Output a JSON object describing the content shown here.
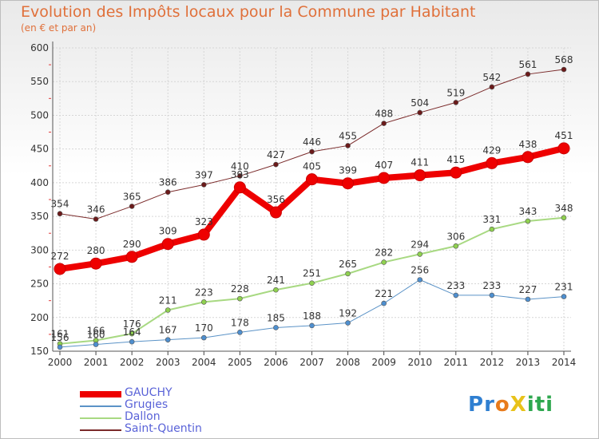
{
  "title": "Evolution des Impôts locaux pour la Commune par Habitant",
  "subtitle": "(en € et par an)",
  "logo": {
    "text": "ProXiti",
    "letters": [
      "P",
      "r",
      "o",
      "X",
      "i",
      "t",
      "i"
    ],
    "colors": [
      "#2f7fd1",
      "#2f7fd1",
      "#e87b1c",
      "#e8c21a",
      "#2fa84f",
      "#2fa84f",
      "#2fa84f"
    ]
  },
  "chart_data": {
    "type": "line",
    "title": "Evolution des Impôts locaux pour la Commune par Habitant",
    "subtitle": "(en € et par an)",
    "xlabel": "",
    "ylabel": "",
    "x": [
      "2000",
      "2001",
      "2002",
      "2003",
      "2004",
      "2005",
      "2006",
      "2007",
      "2008",
      "2009",
      "2010",
      "2011",
      "2012",
      "2013",
      "2014"
    ],
    "ylim": [
      150,
      600
    ],
    "yticks": [
      "150",
      "200",
      "250",
      "300",
      "350",
      "400",
      "450",
      "500",
      "550",
      "600"
    ],
    "grid": true,
    "legend_position": "bottom-left",
    "series": [
      {
        "name": "Saint-Quentin",
        "color": "#7a2a2a",
        "marker": "#6b1a1a",
        "width": 1,
        "values": [
          354,
          346,
          365,
          386,
          397,
          410,
          427,
          446,
          455,
          488,
          504,
          519,
          542,
          561,
          568
        ],
        "labels": [
          "354",
          "346",
          "365",
          "386",
          "397",
          "410",
          "427",
          "446",
          "455",
          "488",
          "504",
          "519",
          "542",
          "561",
          "568"
        ]
      },
      {
        "name": "Dallon",
        "color": "#a8d982",
        "marker": "#8fd14f",
        "width": 2,
        "values": [
          161,
          166,
          176,
          211,
          223,
          228,
          241,
          251,
          265,
          282,
          294,
          306,
          331,
          343,
          348
        ],
        "labels": [
          "161",
          "166",
          "176",
          "211",
          "223",
          "228",
          "241",
          "251",
          "265",
          "282",
          "294",
          "306",
          "331",
          "343",
          "348"
        ]
      },
      {
        "name": "Grugies",
        "color": "#5b93c7",
        "marker": "#4e8fcf",
        "width": 1,
        "values": [
          156,
          160,
          164,
          167,
          170,
          178,
          185,
          188,
          192,
          221,
          256,
          233,
          233,
          227,
          231
        ],
        "labels": [
          "156",
          "160",
          "164",
          "167",
          "170",
          "178",
          "185",
          "188",
          "192",
          "221",
          "256",
          "233",
          "233",
          "227",
          "231"
        ]
      },
      {
        "name": "GAUCHY",
        "color": "#ee0000",
        "marker": "#ee0000",
        "width": 8,
        "values": [
          272,
          280,
          290,
          309,
          323,
          393,
          356,
          405,
          399,
          407,
          411,
          415,
          429,
          438,
          451
        ],
        "labels": [
          "272",
          "280",
          "290",
          "309",
          "323",
          "393",
          "356",
          "405",
          "399",
          "407",
          "411",
          "415",
          "429",
          "438",
          "451"
        ]
      }
    ],
    "legend": [
      "GAUCHY",
      "Grugies",
      "Dallon",
      "Saint-Quentin"
    ]
  }
}
